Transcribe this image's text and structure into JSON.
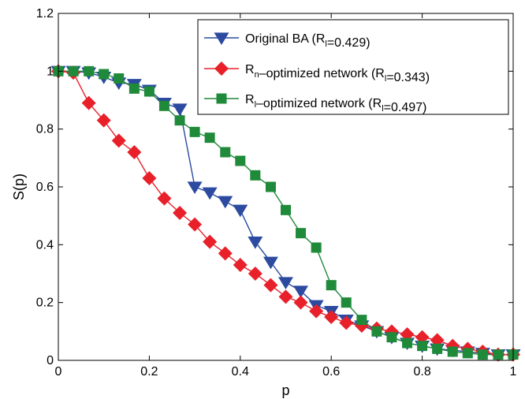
{
  "chart_data": {
    "type": "line",
    "title": "",
    "xlabel": "p",
    "ylabel": "S(p)",
    "xlim": [
      0,
      1
    ],
    "ylim": [
      0,
      1.2
    ],
    "xticks": [
      "0",
      "0.2",
      "0.4",
      "0.6",
      "0.8",
      "1"
    ],
    "yticks": [
      "0",
      "0.2",
      "0.4",
      "0.6",
      "0.8",
      "1",
      "1.2"
    ],
    "grid": false,
    "legend_position": "top-right",
    "series": [
      {
        "legend_main": "Original BA (R",
        "legend_sub": "l",
        "legend_rest": "=0.429)",
        "color": "#2b4aa0",
        "marker": "triangle-down",
        "x": [
          0.0,
          0.033,
          0.067,
          0.1,
          0.133,
          0.167,
          0.2,
          0.233,
          0.267,
          0.3,
          0.333,
          0.367,
          0.4,
          0.433,
          0.467,
          0.5,
          0.533,
          0.567,
          0.6,
          0.633,
          0.667,
          0.7,
          0.733,
          0.767,
          0.8,
          0.833,
          0.867,
          0.9,
          0.933,
          0.967,
          1.0
        ],
        "y": [
          1.0,
          1.0,
          0.995,
          0.98,
          0.96,
          0.955,
          0.935,
          0.89,
          0.87,
          0.6,
          0.58,
          0.55,
          0.52,
          0.41,
          0.34,
          0.27,
          0.24,
          0.19,
          0.17,
          0.14,
          0.12,
          0.1,
          0.08,
          0.06,
          0.05,
          0.04,
          0.035,
          0.03,
          0.025,
          0.02,
          0.02
        ]
      },
      {
        "legend_main": "R",
        "legend_sub": "n",
        "legend_rest": "–optimized network (R",
        "legend_sub2": "l",
        "legend_rest2": "=0.343)",
        "color": "#e8202a",
        "marker": "diamond",
        "x": [
          0.0,
          0.033,
          0.067,
          0.1,
          0.133,
          0.167,
          0.2,
          0.233,
          0.267,
          0.3,
          0.333,
          0.367,
          0.4,
          0.433,
          0.467,
          0.5,
          0.533,
          0.567,
          0.6,
          0.633,
          0.667,
          0.7,
          0.733,
          0.767,
          0.8,
          0.833,
          0.867,
          0.9,
          0.933,
          0.967,
          1.0
        ],
        "y": [
          1.0,
          0.995,
          0.89,
          0.83,
          0.76,
          0.72,
          0.63,
          0.56,
          0.51,
          0.47,
          0.41,
          0.37,
          0.33,
          0.3,
          0.26,
          0.22,
          0.2,
          0.17,
          0.15,
          0.13,
          0.12,
          0.11,
          0.1,
          0.09,
          0.08,
          0.07,
          0.05,
          0.04,
          0.03,
          0.02,
          0.02
        ]
      },
      {
        "legend_main": "R",
        "legend_sub": "l",
        "legend_rest": "–optimized network  (R",
        "legend_sub2": "l",
        "legend_rest2": "=0.497)",
        "color": "#1f8a3a",
        "marker": "square",
        "x": [
          0.0,
          0.033,
          0.067,
          0.1,
          0.133,
          0.167,
          0.2,
          0.233,
          0.267,
          0.3,
          0.333,
          0.367,
          0.4,
          0.433,
          0.467,
          0.5,
          0.533,
          0.567,
          0.6,
          0.633,
          0.667,
          0.7,
          0.733,
          0.767,
          0.8,
          0.833,
          0.867,
          0.9,
          0.933,
          0.967,
          1.0
        ],
        "y": [
          1.0,
          1.0,
          1.0,
          0.99,
          0.975,
          0.94,
          0.93,
          0.88,
          0.83,
          0.79,
          0.77,
          0.72,
          0.69,
          0.64,
          0.6,
          0.52,
          0.44,
          0.39,
          0.26,
          0.2,
          0.14,
          0.1,
          0.08,
          0.06,
          0.05,
          0.04,
          0.03,
          0.025,
          0.02,
          0.02,
          0.02
        ]
      }
    ]
  }
}
